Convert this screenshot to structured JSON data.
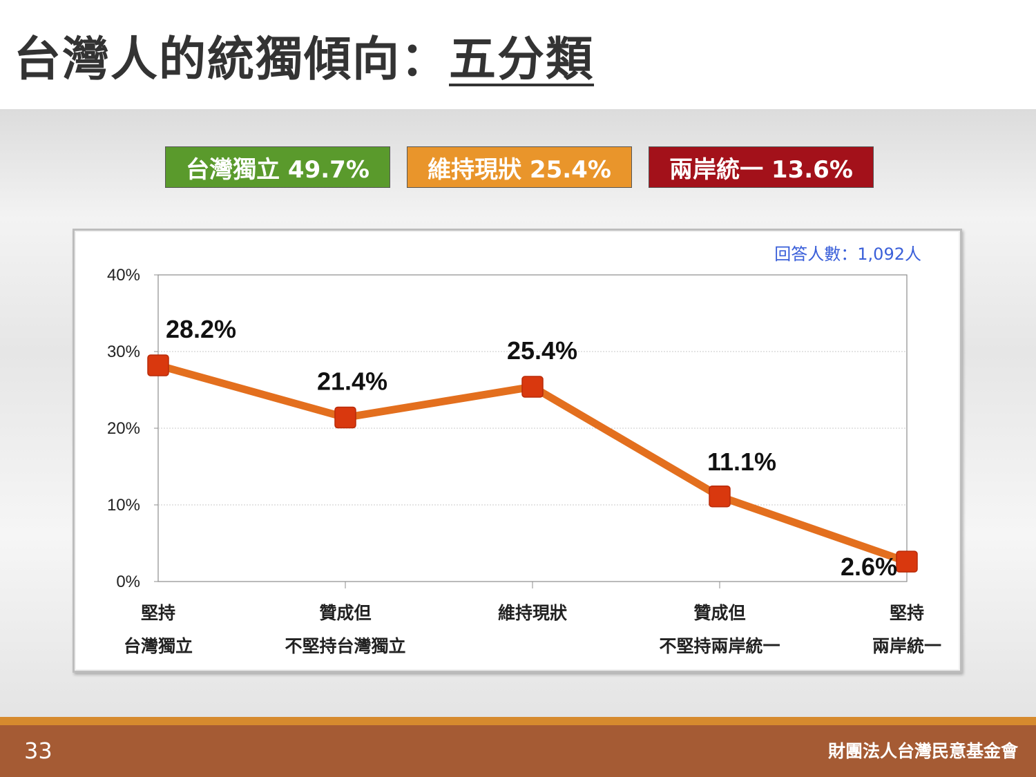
{
  "slide": {
    "title": "台灣人的統獨傾向：",
    "subtitle": "五分類",
    "page_number": "33",
    "organization": "財團法人台灣民意基金會"
  },
  "summary": [
    {
      "label": "台灣獨立 49.7%",
      "color": "#5a9a2c"
    },
    {
      "label": "維持現狀 25.4%",
      "color": "#e9952b"
    },
    {
      "label": "兩岸統一 13.6%",
      "color": "#a3111a"
    }
  ],
  "chart_data": {
    "type": "line",
    "sample_note": "回答人數：1,092人",
    "categories": [
      [
        "堅持",
        "台灣獨立"
      ],
      [
        "贊成但",
        "不堅持台灣獨立"
      ],
      [
        "維持現狀"
      ],
      [
        "贊成但",
        "不堅持兩岸統一"
      ],
      [
        "堅持",
        "兩岸統一"
      ]
    ],
    "series": [
      {
        "values": [
          28.2,
          21.4,
          25.4,
          11.1,
          2.6
        ],
        "data_labels": [
          "28.2%",
          "21.4%",
          "25.4%",
          "11.1%",
          "2.6%"
        ],
        "color": "#e36f1e",
        "marker_color": "#d9380e"
      }
    ],
    "y_ticks": [
      "40%",
      "30%",
      "20%",
      "10%",
      "0%"
    ],
    "ylim": [
      0,
      40
    ],
    "grid": true,
    "legend": "none"
  }
}
